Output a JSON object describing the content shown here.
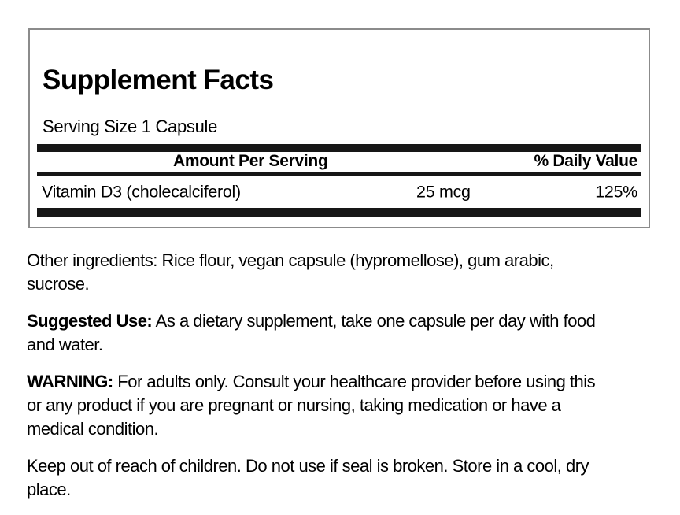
{
  "label": {
    "title": "Supplement Facts",
    "serving_size": "Serving Size 1 Capsule",
    "columns": {
      "amount_header": "Amount Per Serving",
      "daily_value_header": "% Daily Value"
    },
    "rows": [
      {
        "name": "Vitamin D3 (cholecalciferol)",
        "amount": "25 mcg",
        "daily_value": "125%"
      }
    ],
    "colors": {
      "bar": "#161616",
      "border": "#8b8b8b",
      "text": "#000000"
    }
  },
  "paragraphs": [
    {
      "prefix": "",
      "text": "Other ingredients: Rice flour, vegan capsule (hypromellose), gum arabic,\nsucrose."
    },
    {
      "prefix": "Suggested Use:",
      "text": "As a dietary supplement, take one capsule per day with food\nand water."
    },
    {
      "prefix": "WARNING:",
      "text": "For adults only. Consult your healthcare provider before using this\nor any product if you are pregnant or nursing, taking medication or have a\nmedical condition."
    },
    {
      "prefix": "",
      "text": "Keep out of reach of children. Do not use if seal is broken. Store in a cool, dry\nplace."
    }
  ]
}
